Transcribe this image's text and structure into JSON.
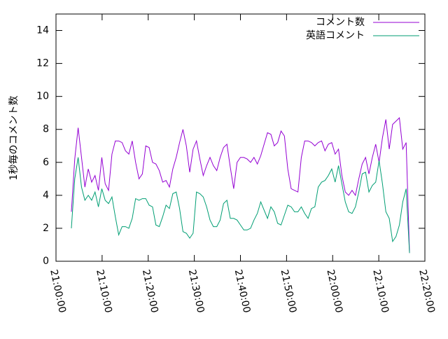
{
  "chart_data": {
    "type": "line",
    "y_label": "1秒毎のコメント数",
    "x": [
      "21:03:20",
      "21:04:04",
      "21:04:48",
      "21:05:32",
      "21:06:16",
      "21:07:00",
      "21:07:44",
      "21:08:28",
      "21:09:12",
      "21:09:56",
      "21:10:40",
      "21:11:24",
      "21:12:08",
      "21:12:52",
      "21:13:36",
      "21:14:20",
      "21:15:04",
      "21:15:48",
      "21:16:32",
      "21:17:16",
      "21:18:00",
      "21:18:44",
      "21:19:28",
      "21:20:12",
      "21:20:56",
      "21:21:40",
      "21:22:24",
      "21:23:08",
      "21:23:52",
      "21:24:36",
      "21:25:20",
      "21:26:04",
      "21:26:48",
      "21:27:32",
      "21:28:16",
      "21:29:00",
      "21:29:44",
      "21:30:28",
      "21:31:12",
      "21:31:56",
      "21:32:40",
      "21:33:24",
      "21:34:08",
      "21:34:52",
      "21:35:36",
      "21:36:20",
      "21:37:04",
      "21:37:48",
      "21:38:32",
      "21:39:16",
      "21:40:00",
      "21:40:44",
      "21:41:28",
      "21:42:12",
      "21:42:56",
      "21:43:40",
      "21:44:24",
      "21:45:08",
      "21:45:52",
      "21:46:36",
      "21:47:20",
      "21:48:04",
      "21:48:48",
      "21:49:32",
      "21:50:16",
      "21:51:00",
      "21:51:44",
      "21:52:28",
      "21:53:12",
      "21:53:56",
      "21:54:40",
      "21:55:24",
      "21:56:08",
      "21:56:52",
      "21:57:36",
      "21:58:20",
      "21:59:04",
      "21:59:48",
      "22:00:32",
      "22:01:16",
      "22:02:00",
      "22:02:44",
      "22:03:28",
      "22:04:12",
      "22:04:56",
      "22:05:40",
      "22:06:24",
      "22:07:08",
      "22:07:52",
      "22:08:36",
      "22:09:20",
      "22:10:04",
      "22:10:48",
      "22:11:32",
      "22:12:16",
      "22:13:00",
      "22:13:44",
      "22:14:28",
      "22:15:12",
      "22:15:56",
      "22:16:40"
    ],
    "series": [
      {
        "name": "コメント数",
        "color": "#9400d3",
        "values": [
          3.0,
          6.2,
          8.1,
          6.3,
          4.5,
          5.6,
          4.8,
          5.2,
          4.3,
          6.3,
          4.7,
          4.3,
          6.5,
          7.3,
          7.3,
          7.2,
          6.7,
          6.5,
          7.3,
          6.0,
          5.0,
          5.3,
          7.0,
          6.9,
          6.0,
          5.9,
          5.5,
          4.8,
          4.9,
          4.5,
          5.6,
          6.3,
          7.2,
          8.0,
          7.0,
          5.4,
          6.8,
          7.3,
          6.2,
          5.2,
          5.8,
          6.3,
          5.8,
          5.5,
          6.3,
          6.9,
          7.1,
          5.7,
          4.4,
          6.0,
          6.3,
          6.3,
          6.2,
          6.0,
          6.3,
          5.9,
          6.4,
          7.1,
          7.8,
          7.7,
          7.0,
          7.2,
          7.9,
          7.6,
          5.6,
          4.4,
          4.3,
          4.2,
          6.3,
          7.3,
          7.3,
          7.2,
          7.0,
          7.2,
          7.3,
          6.7,
          7.1,
          7.2,
          6.5,
          6.8,
          5.2,
          4.2,
          4.0,
          4.3,
          4.0,
          5.0,
          5.9,
          6.3,
          5.3,
          6.3,
          7.1,
          6.0,
          7.5,
          8.6,
          6.8,
          8.3,
          8.5,
          8.7,
          6.8,
          7.2,
          0.5
        ]
      },
      {
        "name": "英語コメント",
        "color": "#009e73",
        "values": [
          2.0,
          5.0,
          6.3,
          4.5,
          3.7,
          4.0,
          3.7,
          4.2,
          3.3,
          4.4,
          3.7,
          3.5,
          3.9,
          2.7,
          1.6,
          2.1,
          2.1,
          2.0,
          2.6,
          3.8,
          3.7,
          3.8,
          3.8,
          3.4,
          3.3,
          2.2,
          2.1,
          2.7,
          3.4,
          3.2,
          4.1,
          4.2,
          3.2,
          1.8,
          1.7,
          1.4,
          1.7,
          4.2,
          4.1,
          3.9,
          3.3,
          2.5,
          2.1,
          2.1,
          2.5,
          3.5,
          3.7,
          2.6,
          2.6,
          2.5,
          2.2,
          1.9,
          1.9,
          2.0,
          2.5,
          2.9,
          3.6,
          3.1,
          2.6,
          3.3,
          3.0,
          2.3,
          2.2,
          2.8,
          3.4,
          3.3,
          3.0,
          3.0,
          3.3,
          2.9,
          2.6,
          3.2,
          3.3,
          4.5,
          4.8,
          4.9,
          5.2,
          5.6,
          4.8,
          5.8,
          4.7,
          3.6,
          3.0,
          2.9,
          3.3,
          4.2,
          5.3,
          5.4,
          4.2,
          4.6,
          4.8,
          6.1,
          4.7,
          3.0,
          2.6,
          1.2,
          1.5,
          2.2,
          3.6,
          4.4,
          0.5
        ]
      }
    ],
    "xlim": [
      "21:00:00",
      "22:20:00"
    ],
    "xticks": [
      "21:00:00",
      "21:10:00",
      "21:20:00",
      "21:30:00",
      "21:40:00",
      "21:50:00",
      "22:00:00",
      "22:10:00",
      "22:20:00"
    ],
    "ylim": [
      0,
      15
    ],
    "yticks": [
      0,
      2,
      4,
      6,
      8,
      10,
      12,
      14
    ],
    "legend": "top-right",
    "grid": false
  }
}
